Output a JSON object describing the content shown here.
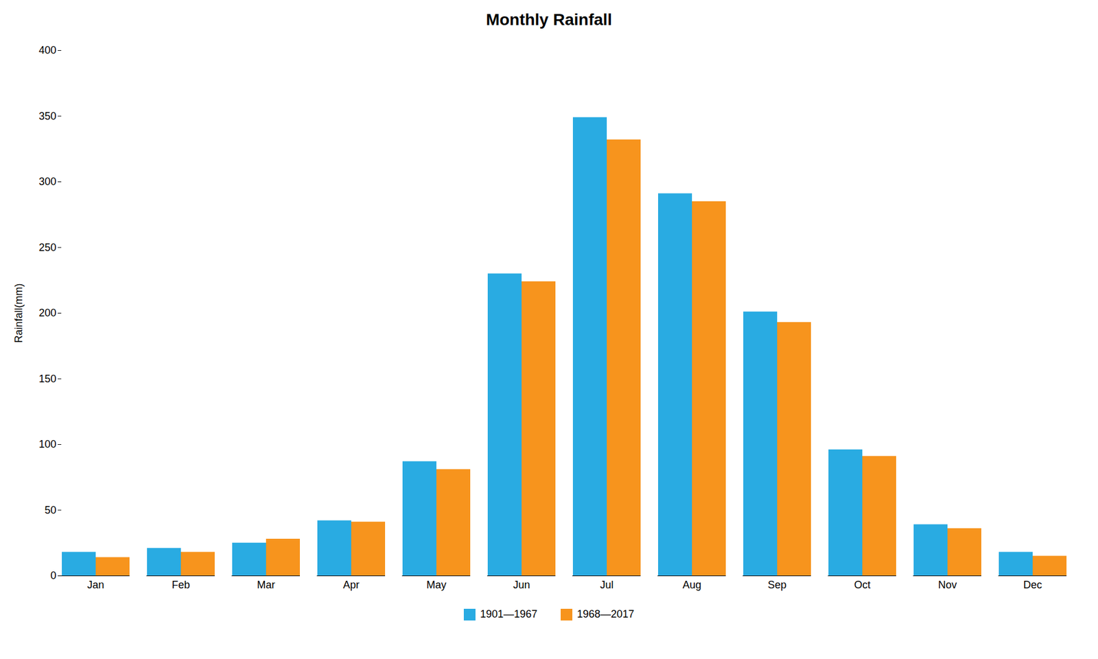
{
  "chart_data": {
    "type": "bar",
    "title": "Monthly Rainfall",
    "ylabel": "Rainfall(mm)",
    "categories": [
      "Jan",
      "Feb",
      "Mar",
      "Apr",
      "May",
      "Jun",
      "Jul",
      "Aug",
      "Sep",
      "Oct",
      "Nov",
      "Dec"
    ],
    "series": [
      {
        "name": "1901—1967",
        "color": "#29ABE2",
        "values": [
          18,
          21,
          25,
          42,
          87,
          230,
          349,
          291,
          201,
          96,
          39,
          18
        ]
      },
      {
        "name": "1968—2017",
        "color": "#F7941D",
        "values": [
          14,
          18,
          28,
          41,
          81,
          224,
          332,
          285,
          193,
          91,
          36,
          15
        ]
      }
    ],
    "ylim": [
      0,
      400
    ],
    "yticks": [
      0,
      50,
      100,
      150,
      200,
      250,
      300,
      350,
      400
    ],
    "grid": false,
    "legend": "bottom"
  }
}
